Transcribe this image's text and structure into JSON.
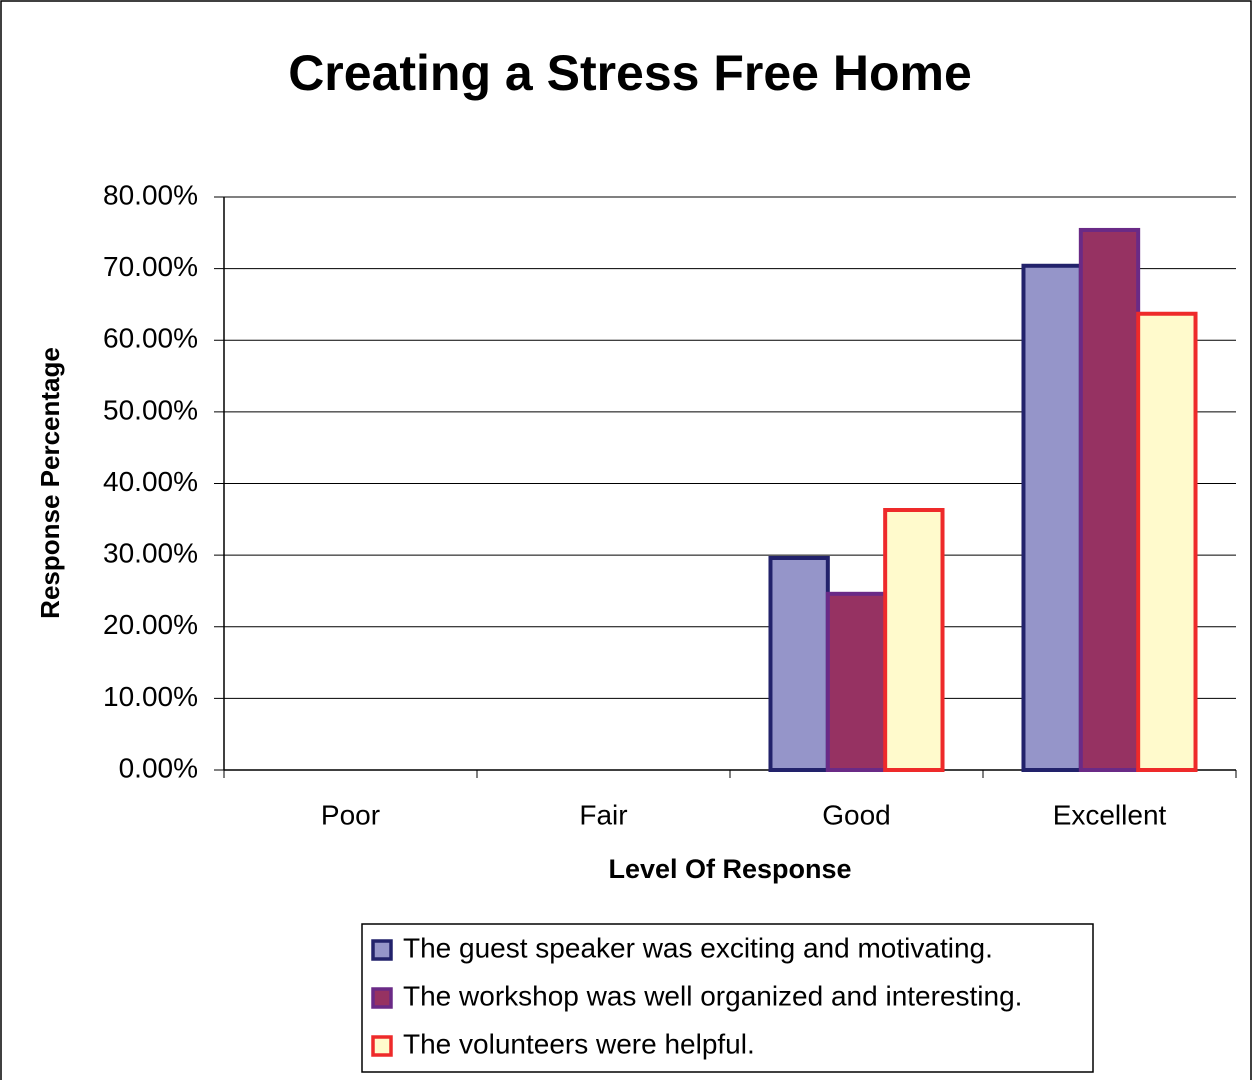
{
  "chart_data": {
    "type": "bar",
    "title": "Creating a Stress Free Home",
    "x_label": "Level Of Response",
    "y_label": "Response Percentage",
    "categories": [
      "Poor",
      "Fair",
      "Good",
      "Excellent"
    ],
    "series": [
      {
        "name": "The guest speaker was exciting and motivating.",
        "color": "#9595c9",
        "border_color": "#22226b",
        "values": [
          0,
          0,
          29.6,
          70.4
        ]
      },
      {
        "name": "The workshop was well organized and interesting.",
        "color": "#963262",
        "border_color": "#6a2a86",
        "values": [
          0,
          0,
          24.6,
          75.4
        ]
      },
      {
        "name": "The volunteers were helpful.",
        "color": "#fffacc",
        "border_color": "#ee2a2a",
        "values": [
          0,
          0,
          36.3,
          63.7
        ]
      }
    ],
    "ylim": [
      0,
      80
    ],
    "yticks": [
      {
        "value": 0,
        "label": "0.00%"
      },
      {
        "value": 10,
        "label": "10.00%"
      },
      {
        "value": 20,
        "label": "20.00%"
      },
      {
        "value": 30,
        "label": "30.00%"
      },
      {
        "value": 40,
        "label": "40.00%"
      },
      {
        "value": 50,
        "label": "50.00%"
      },
      {
        "value": 60,
        "label": "60.00%"
      },
      {
        "value": 70,
        "label": "70.00%"
      },
      {
        "value": 80,
        "label": "80.00%"
      }
    ],
    "grid": true,
    "legend": "bottom"
  }
}
